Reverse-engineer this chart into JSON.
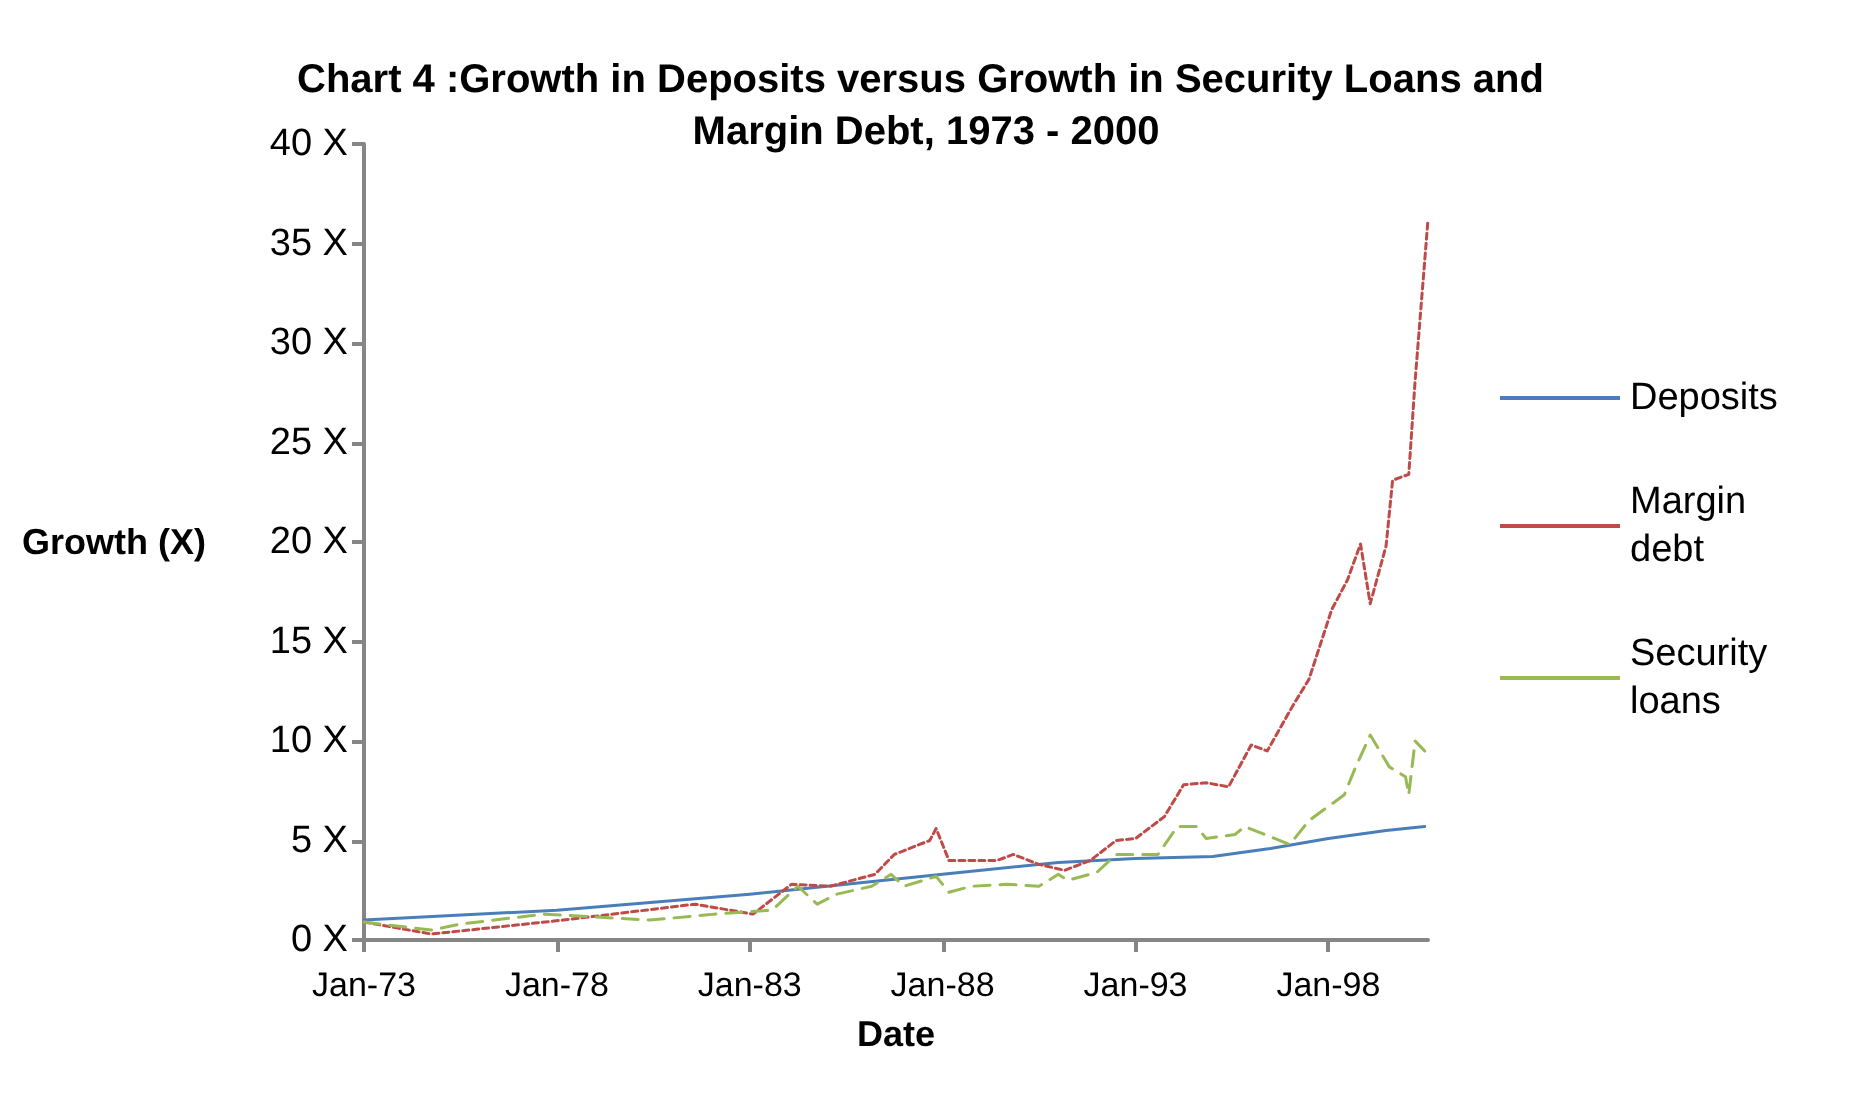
{
  "chart_data": {
    "type": "line",
    "title": "Chart 4 :Growth in Deposits versus Growth in Security Loans and Margin Debt, 1973 - 2000",
    "xlabel": "Date",
    "ylabel": "Growth (X)",
    "xlim": [
      "1973-01",
      "2000-08"
    ],
    "xticks": [
      {
        "value": "1973-01",
        "label": "Jan-73"
      },
      {
        "value": "1978-01",
        "label": "Jan-78"
      },
      {
        "value": "1983-01",
        "label": "Jan-83"
      },
      {
        "value": "1988-01",
        "label": "Jan-88"
      },
      {
        "value": "1993-01",
        "label": "Jan-93"
      },
      {
        "value": "1998-01",
        "label": "Jan-98"
      }
    ],
    "ylim": [
      0,
      40
    ],
    "yticks": [
      {
        "value": 0,
        "label": "0 X"
      },
      {
        "value": 5,
        "label": "5 X"
      },
      {
        "value": 10,
        "label": "10 X"
      },
      {
        "value": 15,
        "label": "15 X"
      },
      {
        "value": 20,
        "label": "20 X"
      },
      {
        "value": 25,
        "label": "25 X"
      },
      {
        "value": 30,
        "label": "30 X"
      },
      {
        "value": 35,
        "label": "35 X"
      },
      {
        "value": 40,
        "label": "40 X"
      }
    ],
    "grid": false,
    "legend": "right",
    "marker": "none",
    "series": [
      {
        "name": "Deposits",
        "color": "#4a7ebb",
        "line_style": "solid",
        "x": [
          "1973-01",
          "1978-01",
          "1983-01",
          "1988-01",
          "1991-01",
          "1993-01",
          "1995-01",
          "1996-07",
          "1998-01",
          "1999-07",
          "2000-07"
        ],
        "values": [
          1.0,
          1.5,
          2.3,
          3.3,
          3.9,
          4.1,
          4.2,
          4.6,
          5.1,
          5.5,
          5.7
        ]
      },
      {
        "name": "Margin debt",
        "color": "#be4b48",
        "line_style": "dotted",
        "x": [
          "1973-01",
          "1974-10",
          "1978-03",
          "1981-08",
          "1983-02",
          "1984-02",
          "1985-02",
          "1986-04",
          "1986-10",
          "1987-09",
          "1987-11",
          "1988-03",
          "1989-06",
          "1989-11",
          "1990-07",
          "1991-03",
          "1991-11",
          "1992-07",
          "1993-01",
          "1993-10",
          "1994-04",
          "1994-11",
          "1995-06",
          "1996-01",
          "1996-06",
          "1997-02",
          "1997-07",
          "1998-02",
          "1998-07",
          "1998-11",
          "1999-02",
          "1999-07",
          "1999-09",
          "2000-02",
          "2000-04",
          "2000-08"
        ],
        "values": [
          0.9,
          0.3,
          1.0,
          1.8,
          1.3,
          2.8,
          2.7,
          3.3,
          4.3,
          5.0,
          5.6,
          4.0,
          4.0,
          4.3,
          3.8,
          3.5,
          4.0,
          5.0,
          5.1,
          6.2,
          7.8,
          7.9,
          7.7,
          9.8,
          9.5,
          11.8,
          13.1,
          16.6,
          18.1,
          19.9,
          16.9,
          19.8,
          23.1,
          23.4,
          28.1,
          36.2
        ]
      },
      {
        "name": "Security loans",
        "color": "#98b954",
        "line_style": "dashed",
        "x": [
          "1973-01",
          "1974-10",
          "1975-07",
          "1977-09",
          "1980-06",
          "1982-02",
          "1983-08",
          "1984-04",
          "1984-10",
          "1985-04",
          "1986-03",
          "1986-09",
          "1987-01",
          "1987-11",
          "1988-03",
          "1988-10",
          "1989-09",
          "1990-07",
          "1991-01",
          "1991-04",
          "1992-01",
          "1992-07",
          "1993-08",
          "1994-02",
          "1994-08",
          "1994-11",
          "1995-08",
          "1995-11",
          "1997-01",
          "1997-07",
          "1998-06",
          "1998-09",
          "1999-02",
          "1999-08",
          "2000-01",
          "2000-02",
          "2000-04",
          "2000-07"
        ],
        "values": [
          0.9,
          0.5,
          0.8,
          1.3,
          1.0,
          1.3,
          1.5,
          2.7,
          1.8,
          2.3,
          2.7,
          3.3,
          2.7,
          3.2,
          2.4,
          2.7,
          2.8,
          2.7,
          3.3,
          3.0,
          3.4,
          4.3,
          4.3,
          5.7,
          5.7,
          5.1,
          5.3,
          5.7,
          4.8,
          6.0,
          7.3,
          8.5,
          10.3,
          8.7,
          8.2,
          7.3,
          10.0,
          9.5
        ]
      }
    ]
  }
}
